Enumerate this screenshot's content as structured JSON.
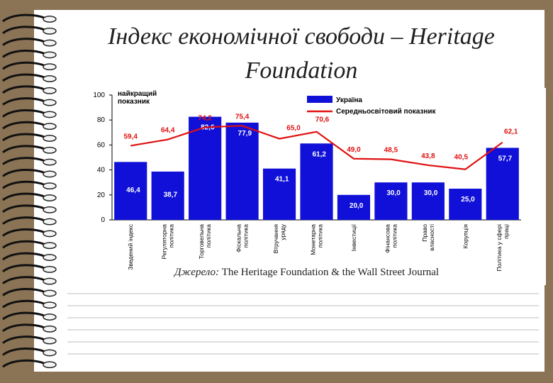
{
  "slide": {
    "title": "Індекс економічної свободи – Heritage Foundation"
  },
  "source": {
    "label": "Джерело:",
    "text": "The Heritage Foundation & the Wall Street Journal"
  },
  "chart_data": {
    "type": "bar",
    "title": "",
    "xlabel": "",
    "ylabel": "",
    "ylim": [
      0,
      100
    ],
    "yticks": [
      0,
      20,
      40,
      60,
      80,
      100
    ],
    "best_label": [
      "найкращий",
      "показник"
    ],
    "categories": [
      [
        "Зведений індекс"
      ],
      [
        "Регуляторна",
        "політика"
      ],
      [
        "Торговельна",
        "політика"
      ],
      [
        "Фіскальна",
        "політика"
      ],
      [
        "Втручання",
        "уряду"
      ],
      [
        "Монетарна",
        "політика"
      ],
      [
        "Інвестиції"
      ],
      [
        "Фінансова",
        "політика"
      ],
      [
        "Право",
        "власності"
      ],
      [
        "Корупція"
      ],
      [
        "Політика у сфері",
        "праці"
      ]
    ],
    "series": [
      {
        "name": "Україна",
        "type": "bar",
        "color": "#1010d8",
        "values": [
          46.4,
          38.7,
          82.6,
          77.9,
          41.1,
          61.2,
          20.0,
          30.0,
          30.0,
          25.0,
          57.7
        ],
        "labels": [
          "46,4",
          "38,7",
          "82,6",
          "77,9",
          "41,1",
          "61,2",
          "20,0",
          "30,0",
          "30,0",
          "25,0",
          "57,7"
        ]
      },
      {
        "name": "Середньосвітовий показник",
        "type": "line",
        "color": "#e01010",
        "values": [
          59.4,
          64.4,
          74.2,
          75.4,
          65.0,
          70.6,
          49.0,
          48.5,
          43.8,
          40.5,
          62.1
        ],
        "labels": [
          "59,4",
          "64,4",
          "74,2",
          "75,4",
          "65,0",
          "70,6",
          "49,0",
          "48,5",
          "43,8",
          "40,5",
          "62,1"
        ]
      }
    ]
  }
}
